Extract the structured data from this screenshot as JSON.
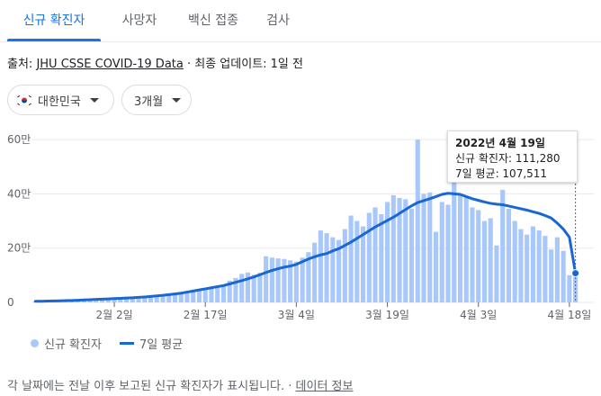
{
  "tabs": [
    {
      "label": "신규 확진자",
      "active": true
    },
    {
      "label": "사망자",
      "active": false
    },
    {
      "label": "백신 접종",
      "active": false
    },
    {
      "label": "검사",
      "active": false
    }
  ],
  "source": {
    "prefix": "출처: ",
    "link": "JHU CSSE COVID-19 Data",
    "suffix": " · 최종 업데이트: 1일 전"
  },
  "filters": {
    "region": {
      "label": "대한민국",
      "flag_icon": "south-korea-flag-icon"
    },
    "period": {
      "label": "3개월"
    }
  },
  "tooltip": {
    "date": "2022년 4월 19일",
    "cases_line": "신규 확진자: 111,280",
    "avg_line": "7일 평균: 107,511"
  },
  "legend": {
    "bars_label": "신규 확진자",
    "line_label": "7일 평균"
  },
  "footer": {
    "note": "각 날짜에는 전날 이후 보고된 신규 확진자가 표시됩니다.",
    "separator": " · ",
    "link": "데이터 정보"
  },
  "colors": {
    "bar": "#a8c7fa",
    "line": "#1967d2",
    "accent": "#1a73e8"
  },
  "chart_data": {
    "type": "bar",
    "xlabel": "",
    "ylabel": "",
    "ylim": [
      0,
      650000
    ],
    "y_ticks": [
      0,
      200000,
      400000,
      600000
    ],
    "y_tick_labels": [
      "0",
      "20만",
      "40만",
      "60만"
    ],
    "x_ticks": [
      "2월 2일",
      "2월 17일",
      "3월 4일",
      "3월 19일",
      "4월 3일",
      "4월 18일"
    ],
    "x_tick_index": [
      13,
      28,
      43,
      58,
      73,
      88
    ],
    "highlight_index": 89,
    "series": [
      {
        "name": "신규 확진자",
        "type": "bar",
        "values": [
          4000,
          4300,
          4600,
          5000,
          5200,
          5600,
          6000,
          6400,
          6900,
          7400,
          8000,
          8600,
          9200,
          10000,
          11000,
          12000,
          13000,
          14000,
          17000,
          22000,
          27000,
          28000,
          32000,
          36000,
          38000,
          42000,
          45000,
          46000,
          48000,
          50000,
          55000,
          62000,
          80000,
          90000,
          105000,
          110000,
          102000,
          109000,
          170000,
          165000,
          162000,
          160000,
          155000,
          150000,
          165000,
          185000,
          220000,
          265000,
          255000,
          240000,
          230000,
          270000,
          320000,
          300000,
          280000,
          330000,
          350000,
          325000,
          370000,
          395000,
          385000,
          380000,
          345000,
          600000,
          400000,
          405000,
          260000,
          370000,
          360000,
          490000,
          395000,
          390000,
          350000,
          340000,
          300000,
          310000,
          210000,
          415000,
          345000,
          300000,
          270000,
          250000,
          280000,
          265000,
          245000,
          195000,
          240000,
          190000,
          100000,
          111280
        ],
        "color": "#a8c7fa"
      },
      {
        "name": "7일 평균",
        "type": "line",
        "values": [
          4000,
          4300,
          4800,
          5200,
          5800,
          6500,
          7200,
          8000,
          9000,
          10000,
          11000,
          12000,
          13000,
          14000,
          15000,
          16000,
          17000,
          18500,
          20000,
          22000,
          24000,
          26000,
          28500,
          31000,
          34000,
          38000,
          42000,
          46000,
          50000,
          54000,
          58000,
          62000,
          68000,
          74000,
          80000,
          87000,
          94000,
          102000,
          110000,
          118000,
          124000,
          130000,
          134000,
          140000,
          150000,
          160000,
          168000,
          175000,
          180000,
          190000,
          198000,
          210000,
          222000,
          236000,
          250000,
          264000,
          278000,
          290000,
          302000,
          314000,
          328000,
          342000,
          356000,
          368000,
          375000,
          382000,
          390000,
          398000,
          402000,
          400000,
          398000,
          390000,
          382000,
          376000,
          370000,
          365000,
          362000,
          360000,
          355000,
          350000,
          345000,
          340000,
          334000,
          328000,
          320000,
          311000,
          292000,
          270000,
          240000,
          107511
        ],
        "color": "#1967d2"
      }
    ]
  }
}
